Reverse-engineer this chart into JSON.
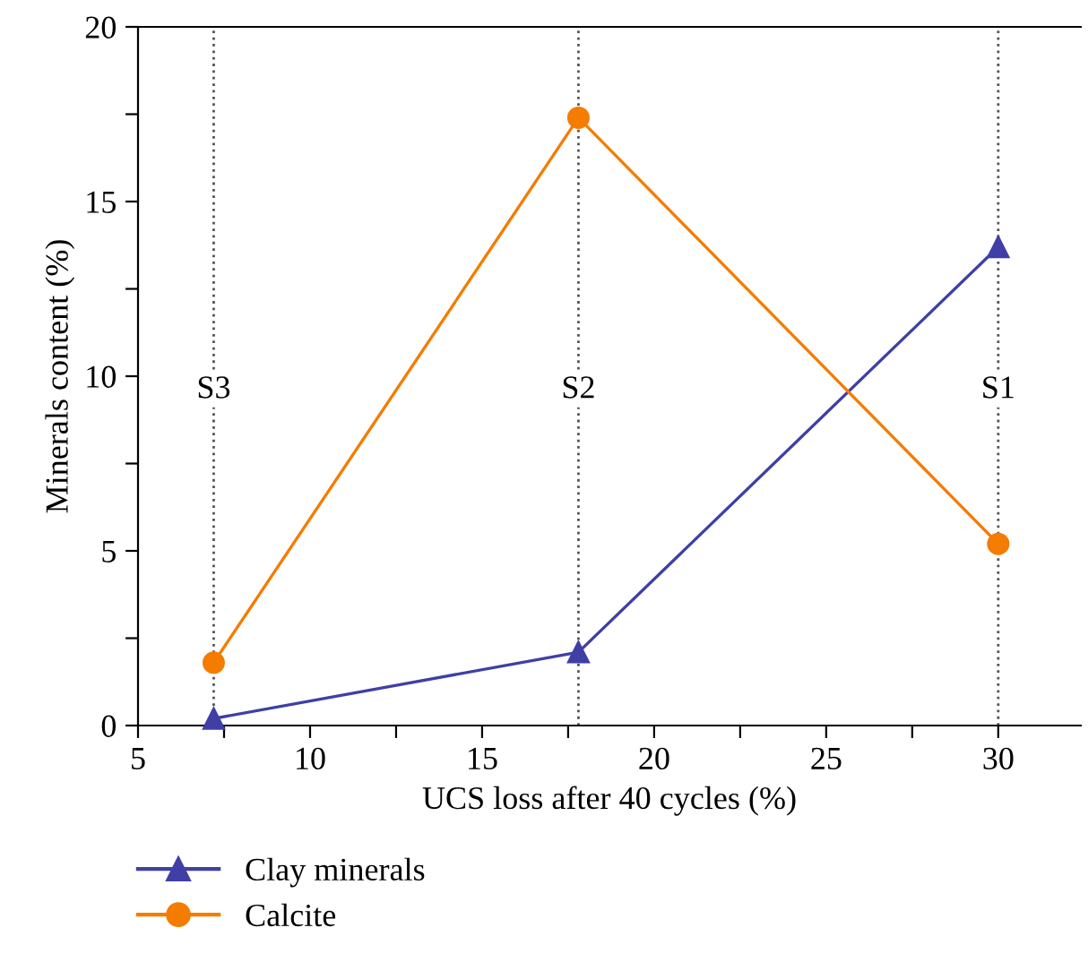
{
  "chart_data": {
    "type": "line",
    "xlabel": "UCS loss after 40 cycles (%)",
    "ylabel": "Minerals content (%)",
    "xlim": [
      5,
      32.4
    ],
    "ylim": [
      0,
      20
    ],
    "xticks": [
      5,
      {
        "value": 7.5,
        "label": null
      },
      10,
      {
        "value": 12.5,
        "label": null
      },
      15,
      {
        "value": 17.5,
        "label": null
      },
      20,
      {
        "value": 22.5,
        "label": null
      },
      25,
      {
        "value": 27.5,
        "label": null
      },
      30
    ],
    "yticks": [
      0,
      {
        "value": 2.5,
        "label": null
      },
      5,
      {
        "value": 7.5,
        "label": null
      },
      10,
      {
        "value": 12.5,
        "label": null
      },
      15,
      {
        "value": 17.5,
        "label": null
      },
      20
    ],
    "series": [
      {
        "name": "Clay minerals",
        "color": "#3f3fa6",
        "marker": "triangle",
        "x": [
          7.2,
          17.8,
          30
        ],
        "values": [
          0.2,
          2.1,
          13.7
        ]
      },
      {
        "name": "Calcite",
        "color": "#f47c00",
        "marker": "circle",
        "x": [
          7.2,
          17.8,
          30
        ],
        "values": [
          1.8,
          17.4,
          5.2
        ]
      }
    ],
    "ref_lines": [
      {
        "axis": "x",
        "value": 7.2,
        "label": "S3",
        "line_style": "dotted",
        "color": "#555555"
      },
      {
        "axis": "x",
        "value": 17.8,
        "label": "S2",
        "line_style": "dotted",
        "color": "#555555"
      },
      {
        "axis": "x",
        "value": 30,
        "label": "S1",
        "line_style": "dotted",
        "color": "#555555"
      }
    ],
    "grid": false,
    "legend": "bottom left",
    "line_style": "solid"
  }
}
